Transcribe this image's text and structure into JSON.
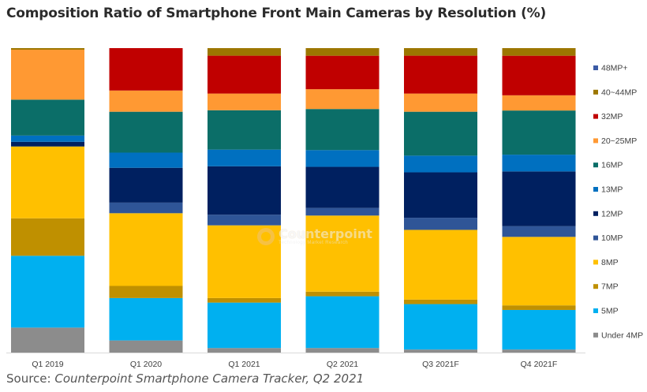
{
  "title": "Composition Ratio of Smartphone Front Main Cameras by Resolution (%)",
  "source": {
    "prefix": "Source: ",
    "text": "Counterpoint Smartphone Camera Tracker, Q2 2021"
  },
  "watermark": {
    "name": "Counterpoint",
    "tagline": "Technology Market Research"
  },
  "chart_data": {
    "type": "bar",
    "stacked": true,
    "percent": true,
    "legend_position": "right",
    "grid": false,
    "ylim": [
      0,
      100
    ],
    "categories": [
      "Q1 2019",
      "Q1 2020",
      "Q1 2021",
      "Q2 2021",
      "Q3 2021F",
      "Q4 2021F"
    ],
    "series": [
      {
        "name": "Under 4MP",
        "color": "#8c8c8c",
        "values": [
          8,
          4,
          1.5,
          1.5,
          1,
          1
        ]
      },
      {
        "name": "5MP",
        "color": "#00b0f0",
        "values": [
          23,
          14,
          15,
          17,
          15,
          13
        ]
      },
      {
        "name": "7MP",
        "color": "#bf9000",
        "values": [
          12,
          4,
          1.5,
          1.5,
          1.5,
          1.5
        ]
      },
      {
        "name": "8MP",
        "color": "#ffc000",
        "values": [
          23,
          24,
          24,
          25,
          23,
          22.5
        ]
      },
      {
        "name": "10MP",
        "color": "#2f5597",
        "values": [
          0,
          3.5,
          3.5,
          2.5,
          4,
          3.5
        ]
      },
      {
        "name": "12MP",
        "color": "#002060",
        "values": [
          1.5,
          11.5,
          16,
          13.5,
          15,
          18
        ]
      },
      {
        "name": "13MP",
        "color": "#0070c0",
        "values": [
          2,
          5,
          5.5,
          5.5,
          5.5,
          5.5
        ]
      },
      {
        "name": "16MP",
        "color": "#0b6e68",
        "values": [
          11.5,
          13.5,
          13,
          13.5,
          14.5,
          14.5
        ]
      },
      {
        "name": "20~25MP",
        "color": "#ff9933",
        "values": [
          16,
          7,
          5.5,
          6.5,
          6,
          5
        ]
      },
      {
        "name": "32MP",
        "color": "#c00000",
        "values": [
          0,
          14,
          12.5,
          11,
          12.5,
          13
        ]
      },
      {
        "name": "40~44MP",
        "color": "#9c7600",
        "values": [
          0.5,
          0,
          2.5,
          2.5,
          2.5,
          2.5
        ]
      },
      {
        "name": "48MP+",
        "color": "#3b5ba5",
        "values": [
          0,
          0,
          0,
          0,
          0,
          0
        ]
      }
    ]
  }
}
